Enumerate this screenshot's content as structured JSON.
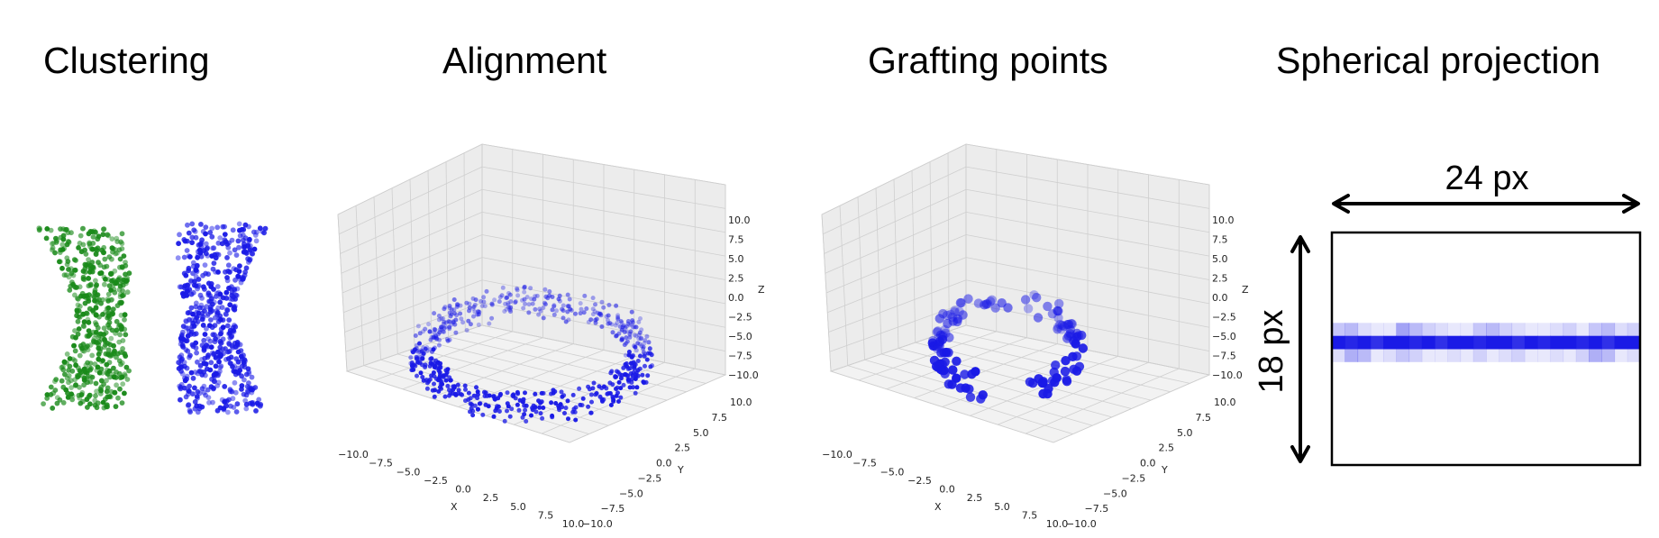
{
  "panels": [
    {
      "title": "Clustering"
    },
    {
      "title": "Alignment"
    },
    {
      "title": "Grafting points"
    },
    {
      "title": "Spherical projection"
    }
  ],
  "axes3d": {
    "x_label": "X",
    "y_label": "Y",
    "z_label": "Z",
    "x_ticks": [
      "−10.0",
      "−7.5",
      "−5.0",
      "−2.5",
      "0.0",
      "2.5",
      "5.0",
      "7.5",
      "10.0"
    ],
    "y_ticks": [
      "10.0",
      "7.5",
      "5.0",
      "2.5",
      "0.0",
      "−2.5",
      "−5.0",
      "−7.5",
      "−10.0"
    ],
    "z_ticks": [
      "10.0",
      "7.5",
      "5.0",
      "2.5",
      "0.0",
      "−2.5",
      "−5.0",
      "−7.5",
      "−10.0"
    ]
  },
  "projection": {
    "width_label": "24 px",
    "height_label": "18 px"
  },
  "colors": {
    "green": "#1a8a1a",
    "blue": "#1a1ae6",
    "grid": "#cfcfcf",
    "pane": "#ececec"
  }
}
